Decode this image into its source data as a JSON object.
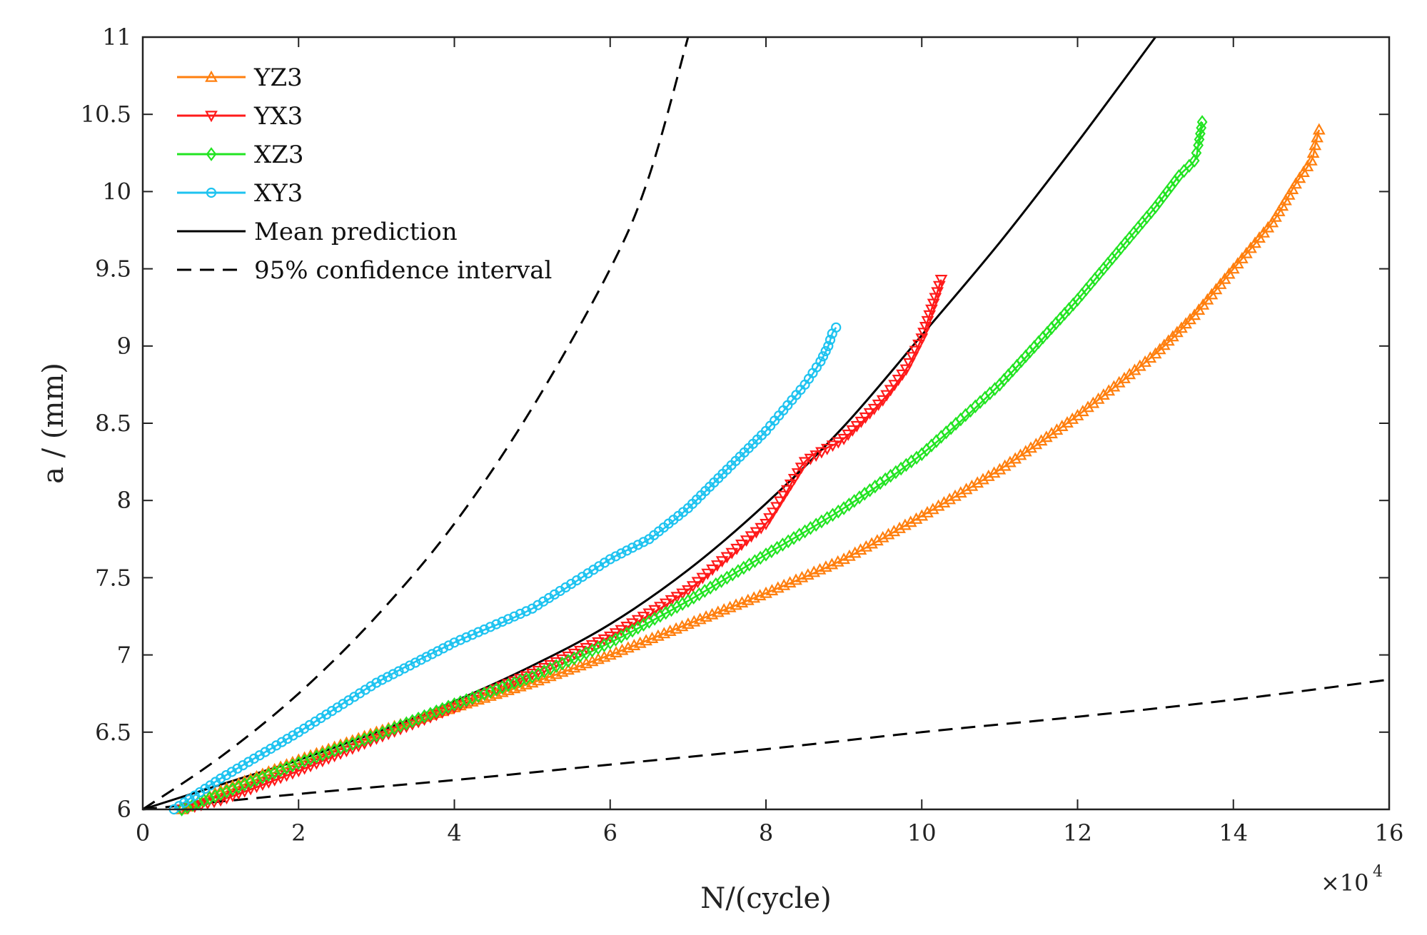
{
  "chart_data": {
    "type": "line",
    "xlabel": "N/(cycle)",
    "ylabel": "a / (mm)",
    "x_multiplier_label": "×10",
    "x_multiplier_exp": "4",
    "xlim": [
      0,
      16
    ],
    "ylim": [
      6,
      11
    ],
    "xticks": [
      0,
      2,
      4,
      6,
      8,
      10,
      12,
      14,
      16
    ],
    "xtick_labels": [
      "0",
      "2",
      "4",
      "6",
      "8",
      "10",
      "12",
      "14",
      "16"
    ],
    "yticks": [
      6,
      6.5,
      7,
      7.5,
      8,
      8.5,
      9,
      9.5,
      10,
      10.5,
      11
    ],
    "ytick_labels": [
      "6",
      "6.5",
      "7",
      "7.5",
      "8",
      "8.5",
      "9",
      "9.5",
      "10",
      "10.5",
      "11"
    ],
    "legend_position": "top-left",
    "series": [
      {
        "name": "YZ3",
        "color": "#ff7f0e",
        "marker": "triangle-up",
        "x": [
          0.5,
          1.0,
          2.0,
          3.0,
          4.0,
          5.0,
          6.0,
          7.0,
          8.0,
          9.0,
          10.0,
          11.0,
          12.0,
          13.0,
          13.5,
          14.0,
          14.5,
          14.8,
          15.0,
          15.05,
          15.1
        ],
        "y": [
          6.0,
          6.12,
          6.32,
          6.5,
          6.66,
          6.82,
          7.0,
          7.2,
          7.4,
          7.62,
          7.9,
          8.2,
          8.55,
          8.95,
          9.2,
          9.5,
          9.8,
          10.05,
          10.2,
          10.3,
          10.4
        ]
      },
      {
        "name": "YX3",
        "color": "#ff1a1a",
        "marker": "triangle-down",
        "x": [
          0.5,
          1.0,
          2.0,
          3.0,
          4.0,
          5.0,
          6.0,
          7.0,
          8.0,
          8.5,
          9.0,
          9.5,
          9.8,
          10.0,
          10.1,
          10.2,
          10.25
        ],
        "y": [
          6.0,
          6.06,
          6.25,
          6.46,
          6.66,
          6.88,
          7.12,
          7.42,
          7.85,
          8.25,
          8.4,
          8.65,
          8.85,
          9.05,
          9.2,
          9.35,
          9.43
        ]
      },
      {
        "name": "XZ3",
        "color": "#22e422",
        "marker": "diamond",
        "x": [
          0.5,
          1.0,
          2.0,
          3.0,
          4.0,
          5.0,
          6.0,
          7.0,
          8.0,
          9.0,
          10.0,
          11.0,
          12.0,
          12.5,
          13.0,
          13.3,
          13.5,
          13.55,
          13.6
        ],
        "y": [
          6.0,
          6.1,
          6.3,
          6.48,
          6.68,
          6.86,
          7.08,
          7.35,
          7.65,
          7.95,
          8.3,
          8.75,
          9.3,
          9.6,
          9.9,
          10.1,
          10.2,
          10.3,
          10.45
        ]
      },
      {
        "name": "XY3",
        "color": "#1ec3f0",
        "marker": "circle",
        "x": [
          0.4,
          1.0,
          2.0,
          3.0,
          4.0,
          5.0,
          6.0,
          6.5,
          7.0,
          7.5,
          8.0,
          8.5,
          8.7,
          8.8,
          8.85,
          8.9
        ],
        "y": [
          6.0,
          6.2,
          6.5,
          6.82,
          7.08,
          7.3,
          7.62,
          7.75,
          7.95,
          8.2,
          8.45,
          8.75,
          8.9,
          9.0,
          9.08,
          9.12
        ]
      },
      {
        "name": "Mean prediction",
        "color": "#000000",
        "marker": "none",
        "line_style": "solid",
        "x": [
          0,
          1,
          2,
          3,
          4,
          5,
          6,
          7,
          8,
          9,
          10,
          11,
          12,
          13
        ],
        "y": [
          6.0,
          6.16,
          6.32,
          6.5,
          6.7,
          6.93,
          7.2,
          7.55,
          7.98,
          8.48,
          9.07,
          9.67,
          10.32,
          11.0
        ]
      },
      {
        "name": "95% confidence interval",
        "color": "#000000",
        "marker": "none",
        "line_style": "dashed",
        "x": [
          0,
          1,
          2,
          3,
          4,
          5,
          6,
          6.5,
          7.0
        ],
        "y": [
          6.0,
          6.34,
          6.75,
          7.25,
          7.85,
          8.6,
          9.5,
          10.1,
          11.0
        ]
      },
      {
        "name": "95% confidence interval (lower)",
        "color": "#000000",
        "marker": "none",
        "line_style": "dashed",
        "in_legend": false,
        "x": [
          0,
          2,
          4,
          6,
          8,
          10,
          12,
          14,
          16
        ],
        "y": [
          6.0,
          6.1,
          6.19,
          6.29,
          6.39,
          6.5,
          6.6,
          6.71,
          6.84
        ]
      }
    ]
  }
}
